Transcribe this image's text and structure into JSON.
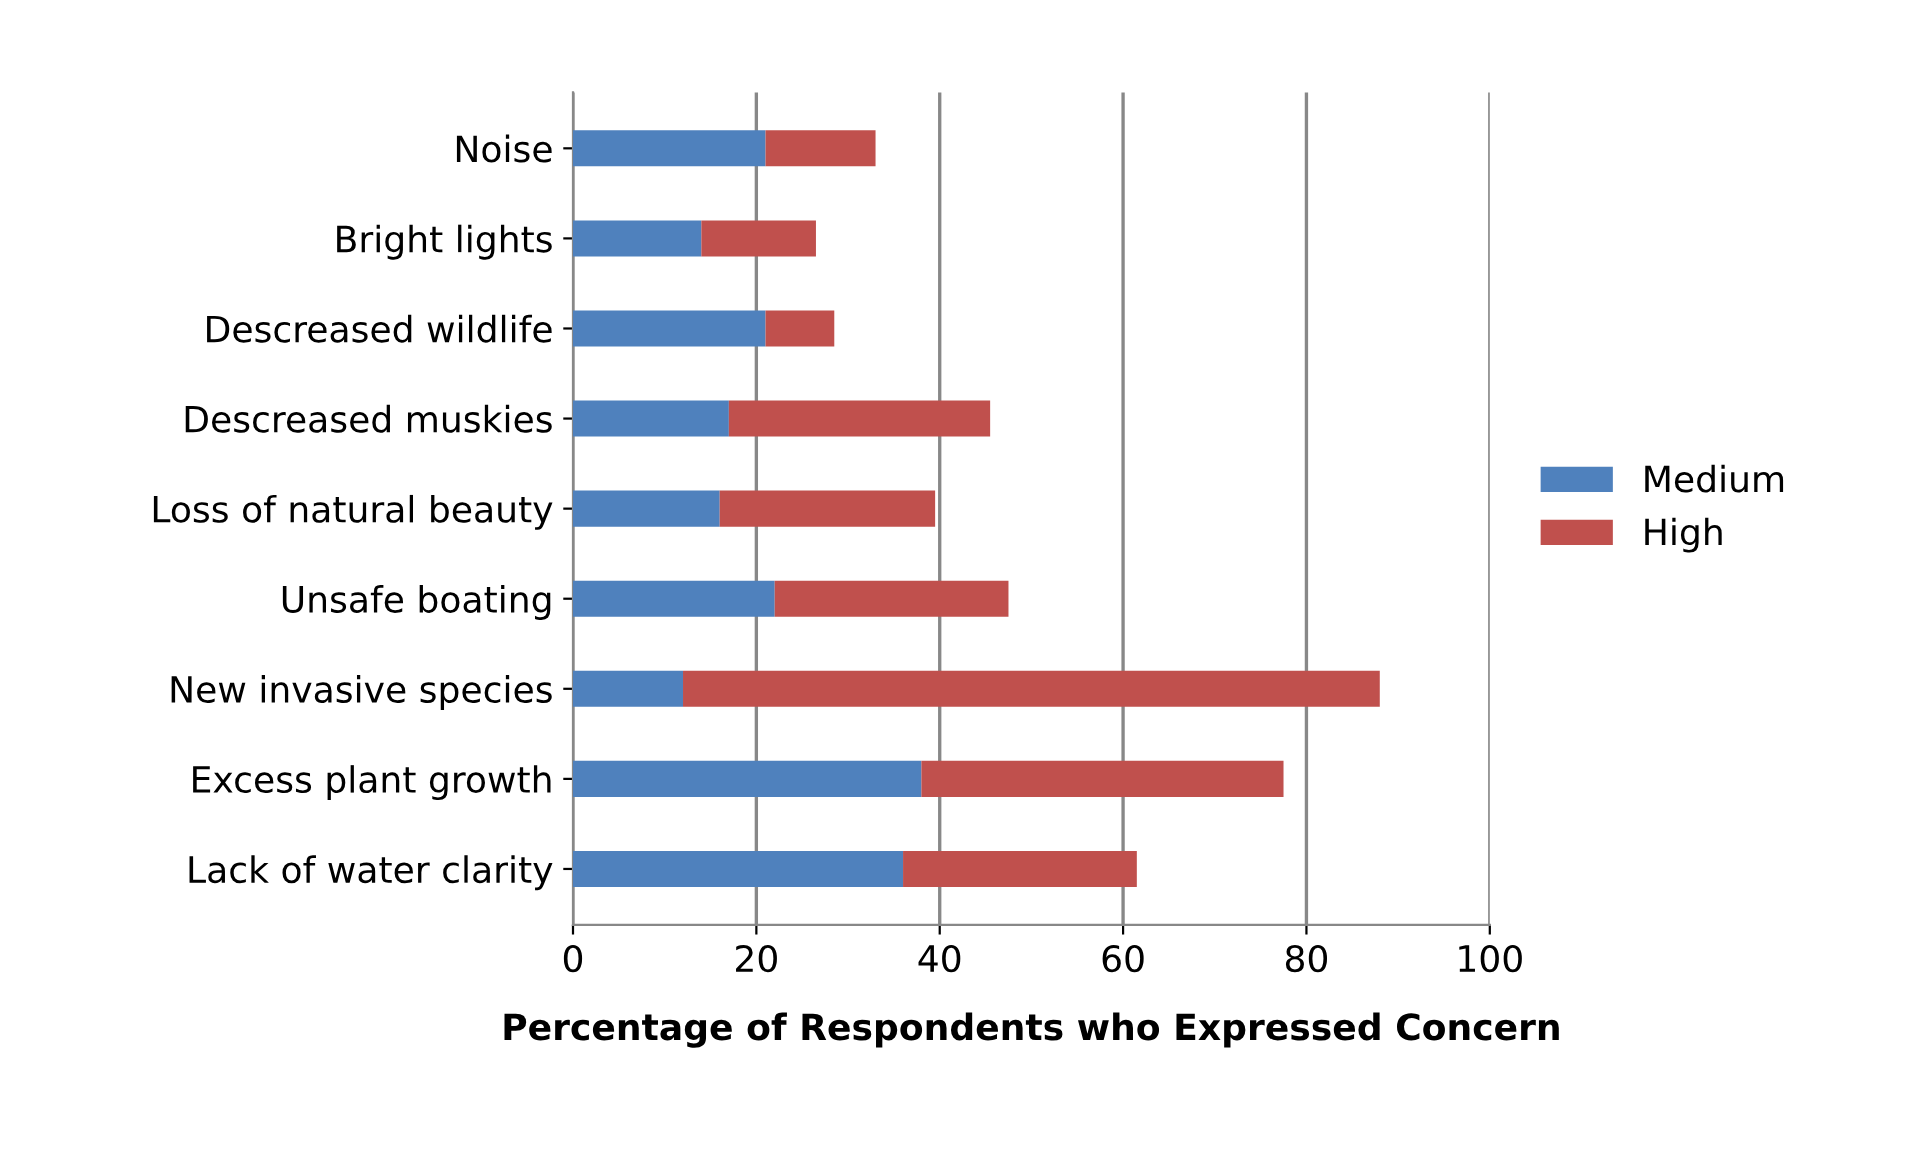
{
  "chart_data": {
    "type": "bar",
    "orientation": "horizontal",
    "stacked": true,
    "categories": [
      "Noise",
      "Bright lights",
      "Descreased wildlife",
      "Descreased muskies",
      "Loss of natural beauty",
      "Unsafe boating",
      "New invasive species",
      "Excess plant growth",
      "Lack of water clarity"
    ],
    "series": [
      {
        "name": "Medium",
        "color": "#4f81bd",
        "values": [
          21,
          14,
          21,
          17,
          16,
          22,
          12,
          38,
          36
        ]
      },
      {
        "name": "High",
        "color": "#c0504d",
        "values": [
          12,
          12.5,
          7.5,
          28.5,
          23.5,
          25.5,
          76,
          39.5,
          25.5
        ]
      }
    ],
    "xlabel": "Percentage of Respondents who Expressed Concern",
    "xlim": [
      0,
      100
    ],
    "xticks": [
      0,
      20,
      40,
      60,
      80,
      100
    ],
    "grid": "x",
    "legend": "right"
  }
}
